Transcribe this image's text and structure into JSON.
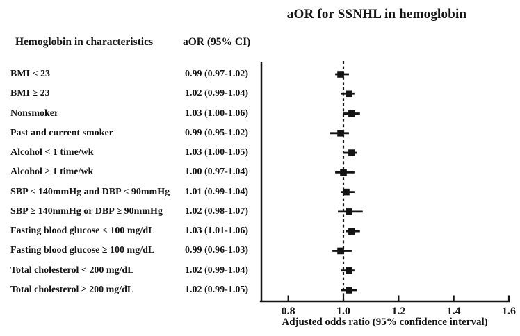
{
  "title": "aOR for SSNHL in hemoglobin",
  "table": {
    "col1_header": "Hemoglobin in characteristics",
    "col2_header": "aOR (95% CI)"
  },
  "rows": [
    {
      "label": "BMI < 23",
      "aor_ci": "0.99 (0.97-1.02)",
      "aor": 0.99,
      "lo": 0.97,
      "hi": 1.02
    },
    {
      "label": "BMI ≥ 23",
      "aor_ci": "1.02 (0.99-1.04)",
      "aor": 1.02,
      "lo": 0.99,
      "hi": 1.04
    },
    {
      "label": "Nonsmoker",
      "aor_ci": "1.03 (1.00-1.06)",
      "aor": 1.03,
      "lo": 1.0,
      "hi": 1.06
    },
    {
      "label": "Past and current smoker",
      "aor_ci": "0.99 (0.95-1.02)",
      "aor": 0.99,
      "lo": 0.95,
      "hi": 1.02
    },
    {
      "label": "Alcohol < 1 time/wk",
      "aor_ci": "1.03 (1.00-1.05)",
      "aor": 1.03,
      "lo": 1.0,
      "hi": 1.05
    },
    {
      "label": "Alcohol ≥ 1 time/wk",
      "aor_ci": "1.00 (0.97-1.04)",
      "aor": 1.0,
      "lo": 0.97,
      "hi": 1.04
    },
    {
      "label": "SBP < 140mmHg and DBP < 90mmHg",
      "aor_ci": "1.01 (0.99-1.04)",
      "aor": 1.01,
      "lo": 0.99,
      "hi": 1.04
    },
    {
      "label": "SBP ≥ 140mmHg or DBP ≥ 90mmHg",
      "aor_ci": "1.02 (0.98-1.07)",
      "aor": 1.02,
      "lo": 0.98,
      "hi": 1.07
    },
    {
      "label": "Fasting blood glucose < 100 mg/dL",
      "aor_ci": "1.03 (1.01-1.06)",
      "aor": 1.03,
      "lo": 1.01,
      "hi": 1.06
    },
    {
      "label": "Fasting blood glucose ≥ 100 mg/dL",
      "aor_ci": "0.99 (0.96-1.03)",
      "aor": 0.99,
      "lo": 0.96,
      "hi": 1.03
    },
    {
      "label": "Total cholesterol < 200 mg/dL",
      "aor_ci": "1.02 (0.99-1.04)",
      "aor": 1.02,
      "lo": 0.99,
      "hi": 1.04
    },
    {
      "label": "Total cholesterol ≥ 200 mg/dL",
      "aor_ci": "1.02 (0.99-1.05)",
      "aor": 1.02,
      "lo": 0.99,
      "hi": 1.05
    }
  ],
  "axis": {
    "tick_labels": [
      "0.8",
      "1.0",
      "1.2",
      "1.4",
      "1.6"
    ],
    "label": "Adjusted odds ratio (95% confidence interval)"
  },
  "chart_data": {
    "type": "scatter",
    "subtype": "forest-plot",
    "title": "aOR for SSNHL in hemoglobin",
    "categories": [
      "BMI < 23",
      "BMI ≥ 23",
      "Nonsmoker",
      "Past and current smoker",
      "Alcohol < 1 time/wk",
      "Alcohol ≥ 1 time/wk",
      "SBP < 140mmHg and DBP < 90mmHg",
      "SBP ≥ 140mmHg or DBP ≥ 90mmHg",
      "Fasting blood glucose < 100 mg/dL",
      "Fasting blood glucose ≥ 100 mg/dL",
      "Total cholesterol < 200 mg/dL",
      "Total cholesterol ≥ 200 mg/dL"
    ],
    "series": [
      {
        "name": "aOR",
        "values": [
          0.99,
          1.02,
          1.03,
          0.99,
          1.03,
          1.0,
          1.01,
          1.02,
          1.03,
          0.99,
          1.02,
          1.02
        ]
      },
      {
        "name": "ci_low",
        "values": [
          0.97,
          0.99,
          1.0,
          0.95,
          1.0,
          0.97,
          0.99,
          0.98,
          1.01,
          0.96,
          0.99,
          0.99
        ]
      },
      {
        "name": "ci_high",
        "values": [
          1.02,
          1.04,
          1.06,
          1.02,
          1.05,
          1.04,
          1.04,
          1.07,
          1.06,
          1.03,
          1.04,
          1.05
        ]
      }
    ],
    "xlabel": "Adjusted odds ratio (95% confidence interval)",
    "ylabel": "",
    "xlim": [
      0.7,
      1.6
    ],
    "xticks": [
      0.8,
      1.0,
      1.2,
      1.4,
      1.6
    ],
    "reference_line": 1.0,
    "orientation": "horizontal",
    "grid": false,
    "legend": false,
    "marker": "square",
    "colors": {
      "ink": "#141414",
      "background": "#ffffff"
    }
  }
}
